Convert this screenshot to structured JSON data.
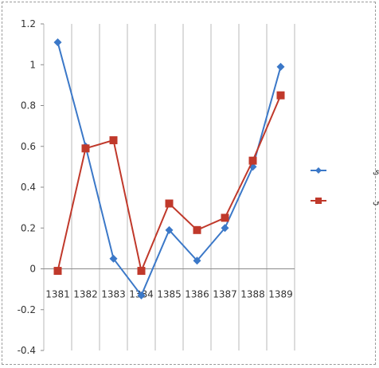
{
  "chart_data": {
    "type": "line",
    "title": "",
    "xlabel": "",
    "ylabel": "",
    "categories": [
      "1381",
      "1382",
      "1383",
      "1384",
      "1385",
      "1386",
      "1387",
      "1388",
      "1389"
    ],
    "ylim": [
      -0.4,
      1.2
    ],
    "yticks": [
      "1.2",
      "1",
      "0.8",
      "0.6",
      "0.4",
      "0.2",
      "0",
      "-0.2",
      "-0.4"
    ],
    "grid": "vertical",
    "legend_position": "right",
    "series": [
      {
        "name": "سهام رشدی",
        "color": "#3b78c8",
        "marker": "diamond",
        "values": [
          1.11,
          0.6,
          0.05,
          -0.13,
          0.19,
          0.04,
          0.2,
          0.5,
          0.99
        ]
      },
      {
        "name": "سهام ارزشی",
        "color": "#c0392b",
        "marker": "square",
        "values": [
          -0.01,
          0.59,
          0.63,
          -0.01,
          0.32,
          0.19,
          0.25,
          0.53,
          0.85
        ]
      }
    ]
  }
}
